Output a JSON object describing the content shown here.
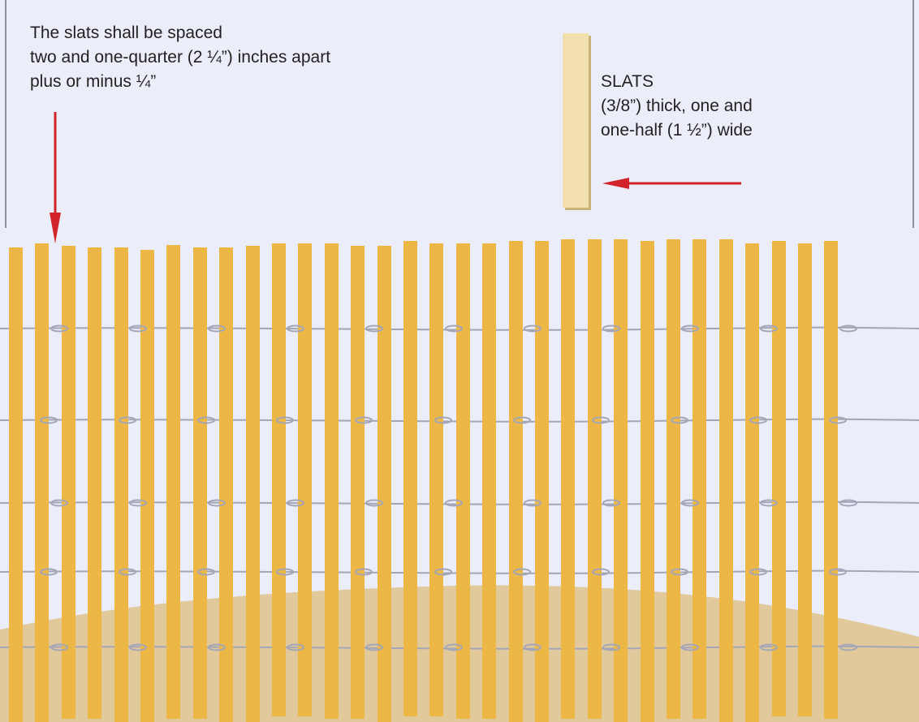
{
  "spacing_note": {
    "lines": [
      "The slats shall be spaced",
      "two and one-quarter (2 ¼”) inches apart",
      "plus or minus ¼”"
    ]
  },
  "slat_note": {
    "lines": [
      "SLATS",
      "(3/8”)  thick, one and",
      "one-half (1 ½”) wide"
    ]
  },
  "colors": {
    "background": "#ebeef8",
    "slat": "#ecb744",
    "sample_slat": "#f2dfae",
    "wire": "#a4a6b8",
    "ground": "#e1c99c",
    "arrow": "#d2232a",
    "frame_line": "#8f8f9f"
  },
  "icons": {
    "spacing_arrow": "arrow-down-icon",
    "slat_arrow": "arrow-left-icon"
  }
}
